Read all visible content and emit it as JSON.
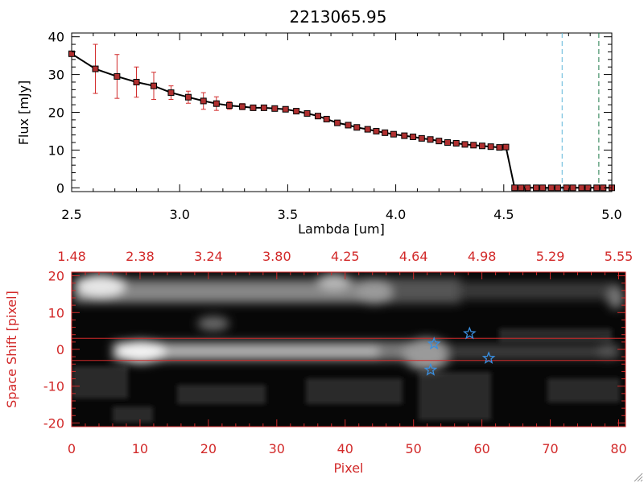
{
  "chart_data": [
    {
      "type": "line",
      "title": "2213065.95",
      "xlabel": "Lambda [um]",
      "ylabel": "Flux [mJy]",
      "xlim": [
        2.5,
        5.0
      ],
      "ylim": [
        -1,
        41
      ],
      "xticks": [
        "2.5",
        "3.0",
        "3.5",
        "4.0",
        "4.5",
        "5.0"
      ],
      "yticks": [
        "0",
        "10",
        "20",
        "30",
        "40"
      ],
      "x": [
        2.5,
        2.61,
        2.71,
        2.8,
        2.88,
        2.96,
        3.04,
        3.11,
        3.17,
        3.23,
        3.29,
        3.34,
        3.39,
        3.44,
        3.49,
        3.54,
        3.59,
        3.64,
        3.68,
        3.73,
        3.78,
        3.82,
        3.87,
        3.91,
        3.95,
        3.99,
        4.04,
        4.08,
        4.12,
        4.16,
        4.2,
        4.24,
        4.28,
        4.32,
        4.36,
        4.4,
        4.44,
        4.48,
        4.51,
        4.55,
        4.58,
        4.61,
        4.65,
        4.68,
        4.72,
        4.75,
        4.79,
        4.82,
        4.86,
        4.89,
        4.93,
        4.96,
        5.0
      ],
      "y": [
        35.5,
        31.5,
        29.5,
        28.0,
        27.0,
        25.2,
        24.0,
        23.0,
        22.3,
        21.8,
        21.5,
        21.2,
        21.2,
        21.0,
        20.8,
        20.3,
        19.7,
        19.0,
        18.2,
        17.2,
        16.6,
        16.0,
        15.5,
        15.0,
        14.6,
        14.2,
        13.8,
        13.5,
        13.1,
        12.8,
        12.4,
        12.0,
        11.8,
        11.5,
        11.3,
        11.1,
        10.9,
        10.7,
        10.8,
        0,
        0,
        0,
        0,
        0,
        0,
        0,
        0,
        0,
        0,
        0,
        0,
        0,
        0
      ],
      "yerr": [
        0.5,
        6.5,
        5.8,
        4.0,
        3.6,
        1.8,
        1.6,
        2.2,
        1.8,
        1.0,
        0.8,
        0.4,
        0.3,
        0.3,
        0.3,
        0.3,
        0.3,
        0.3,
        0.3,
        0.3,
        0.3,
        0.3,
        0.3,
        0.3,
        0.3,
        0.3,
        0.3,
        0.3,
        0.3,
        0.3,
        0.3,
        0.3,
        0.3,
        0.3,
        0.3,
        0.3,
        0.3,
        0.3,
        0.3,
        0,
        0,
        0,
        0,
        0,
        0,
        0,
        0,
        0,
        0,
        0,
        0,
        0,
        0
      ],
      "vlines": [
        {
          "x": 4.77,
          "color": "#5fb6d9",
          "style": "dashed"
        },
        {
          "x": 4.94,
          "color": "#1f7a4a",
          "style": "dashed"
        }
      ],
      "hline": {
        "y": 0,
        "color": "#e23b3b",
        "style": "dashed",
        "xmin": 4.55,
        "xmax": 5.0
      },
      "line_color": "#000000",
      "marker_color": "#b03030",
      "errorbar_color": "#d22a2a"
    },
    {
      "type": "heatmap",
      "xlabel": "Pixel",
      "ylabel": "Space Shift [pixel]",
      "xlim": [
        0,
        81
      ],
      "ylim": [
        -21,
        21
      ],
      "xticks": [
        "0",
        "10",
        "20",
        "30",
        "40",
        "50",
        "60",
        "70",
        "80"
      ],
      "yticks": [
        "-20",
        "-10",
        "0",
        "10",
        "20"
      ],
      "top_ticks": [
        "1.48",
        "2.38",
        "3.24",
        "3.80",
        "4.25",
        "4.64",
        "4.98",
        "5.29",
        "5.55"
      ],
      "hlines": [
        3,
        -3
      ],
      "hline_color": "#d22a2a",
      "stars": [
        {
          "x": 53.0,
          "y": 1.5
        },
        {
          "x": 58.2,
          "y": 4.3
        },
        {
          "x": 61.0,
          "y": -2.4
        },
        {
          "x": 52.5,
          "y": -5.6
        }
      ],
      "star_color": "#3a8fe0",
      "axis_color": "#d22a2a"
    }
  ]
}
